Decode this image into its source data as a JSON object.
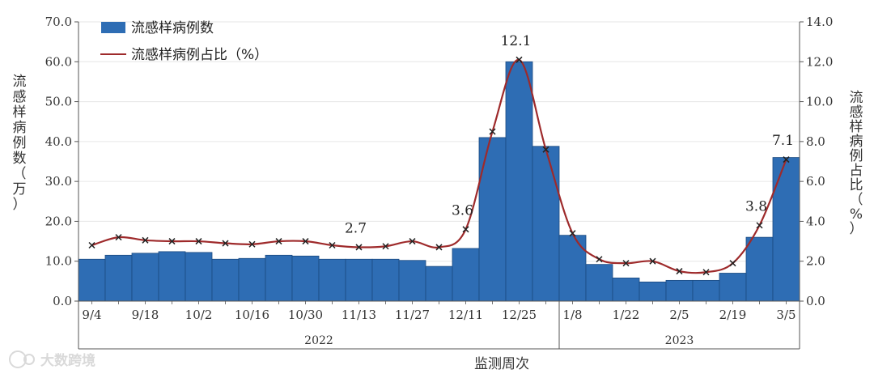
{
  "chart_data": {
    "type": "bar+line",
    "xlabel": "监测周次",
    "ylabel_left": [
      "流",
      "感",
      "样",
      "病",
      "例",
      "数",
      "（",
      "万",
      "）"
    ],
    "ylabel_right": [
      "流",
      "感",
      "样",
      "病",
      "例",
      "占",
      "比",
      "（",
      "%",
      "）"
    ],
    "ylim_left": [
      0,
      70
    ],
    "ylim_right": [
      0,
      14
    ],
    "left_ticks": [
      "0.0",
      "10.0",
      "20.0",
      "30.0",
      "40.0",
      "50.0",
      "60.0",
      "70.0"
    ],
    "right_ticks": [
      "0.0",
      "2.0",
      "4.0",
      "6.0",
      "8.0",
      "10.0",
      "12.0",
      "14.0"
    ],
    "week_labels": [
      "9/4",
      "",
      "9/18",
      "",
      "10/2",
      "",
      "10/16",
      "",
      "10/30",
      "",
      "11/13",
      "",
      "11/27",
      "",
      "12/11",
      "",
      "12/25",
      "",
      "1/8",
      "",
      "1/22",
      "",
      "2/5",
      "",
      "2/19",
      "",
      "3/5"
    ],
    "years": [
      "2022",
      "2023"
    ],
    "year_split_index": 18,
    "series": [
      {
        "name": "流感样病例数",
        "type": "bar",
        "axis": "left",
        "color": "#2e6db4",
        "values": [
          10.5,
          11.5,
          12,
          12.4,
          12.2,
          10.5,
          10.7,
          11.5,
          11.3,
          10.5,
          10.5,
          10.5,
          10.2,
          8.7,
          13.2,
          41,
          60,
          38.8,
          16.5,
          9.2,
          5.8,
          4.8,
          5.2,
          5.2,
          7,
          16,
          36
        ]
      },
      {
        "name": "流感样病例占比（%）",
        "type": "line",
        "axis": "right",
        "color": "#9e2a2b",
        "values": [
          2.8,
          3.2,
          3.05,
          3.0,
          3.0,
          2.9,
          2.85,
          3.0,
          3.0,
          2.8,
          2.7,
          2.75,
          3.0,
          2.7,
          3.6,
          8.5,
          12.1,
          7.6,
          3.4,
          2.1,
          1.9,
          2.0,
          1.5,
          1.45,
          1.9,
          3.8,
          7.1
        ]
      }
    ],
    "data_labels": [
      {
        "index": 10,
        "text": "2.7"
      },
      {
        "index": 14,
        "text": "3.6"
      },
      {
        "index": 16,
        "text": "12.1"
      },
      {
        "index": 25,
        "text": "3.8"
      },
      {
        "index": 26,
        "text": "7.1"
      }
    ],
    "legend": "top-left"
  },
  "watermark": "大数跨境"
}
